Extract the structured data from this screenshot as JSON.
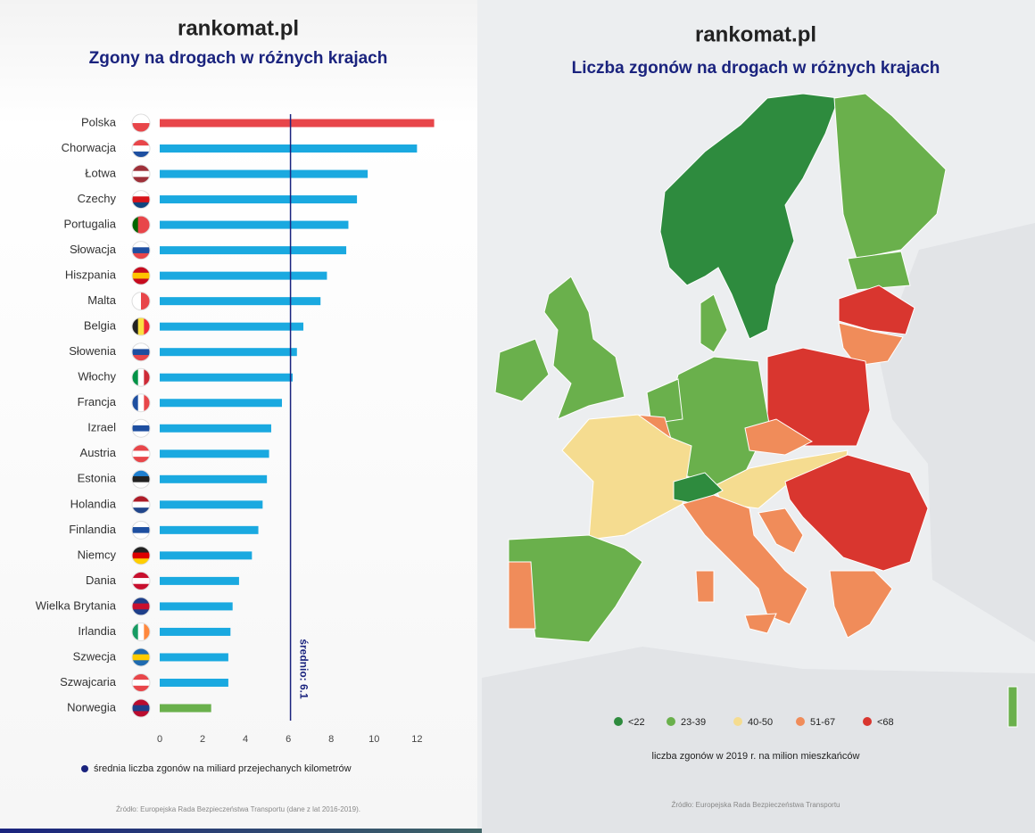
{
  "chart_data": [
    {
      "type": "bar",
      "orientation": "horizontal",
      "brand": "rankomat.pl",
      "title": "Zgony na drogach w różnych krajach",
      "categories": [
        "Polska",
        "Chorwacja",
        "Łotwa",
        "Czechy",
        "Portugalia",
        "Słowacja",
        "Hiszpania",
        "Malta",
        "Belgia",
        "Słowenia",
        "Włochy",
        "Francja",
        "Izrael",
        "Austria",
        "Estonia",
        "Holandia",
        "Finlandia",
        "Niemcy",
        "Dania",
        "Wielka Brytania",
        "Irlandia",
        "Szwecja",
        "Szwajcaria",
        "Norwegia"
      ],
      "values": [
        12.8,
        12.0,
        9.7,
        9.2,
        8.8,
        8.7,
        7.8,
        7.5,
        6.7,
        6.4,
        6.2,
        5.7,
        5.2,
        5.1,
        5.0,
        4.8,
        4.6,
        4.3,
        3.7,
        3.4,
        3.3,
        3.2,
        3.2,
        2.4
      ],
      "colors": [
        "#e8464a",
        "#1aa9e0",
        "#1aa9e0",
        "#1aa9e0",
        "#1aa9e0",
        "#1aa9e0",
        "#1aa9e0",
        "#1aa9e0",
        "#1aa9e0",
        "#1aa9e0",
        "#1aa9e0",
        "#1aa9e0",
        "#1aa9e0",
        "#1aa9e0",
        "#1aa9e0",
        "#1aa9e0",
        "#1aa9e0",
        "#1aa9e0",
        "#1aa9e0",
        "#1aa9e0",
        "#1aa9e0",
        "#1aa9e0",
        "#1aa9e0",
        "#6ab04c"
      ],
      "xlim": [
        0,
        12.9
      ],
      "xticks": [
        0,
        2,
        4,
        6,
        8,
        10,
        12
      ],
      "annotation": {
        "label": "średnio: 6.1",
        "value": 6.1,
        "color": "#1a237e"
      },
      "legend_text": "średnia liczba zgonów na miliard przejechanych kilometrów",
      "source": "Źródło: Europejska Rada Bezpieczeństwa Transportu (dane z lat 2016-2019)."
    },
    {
      "type": "map",
      "brand": "rankomat.pl",
      "title": "Liczba zgonów na drogach w różnych krajach",
      "legend": [
        {
          "label": "<22",
          "color": "#2e8b3e"
        },
        {
          "label": "23-39",
          "color": "#6ab04c"
        },
        {
          "label": "40-50",
          "color": "#f5dc90"
        },
        {
          "label": "51-67",
          "color": "#f08c5a"
        },
        {
          "label": "<68",
          "color": "#d9362f"
        }
      ],
      "caption": "liczba zgonów w 2019 r. na milion mieszkańców",
      "source": "Źródło: Europejska Rada Bezpieczeństwa Transportu"
    }
  ]
}
